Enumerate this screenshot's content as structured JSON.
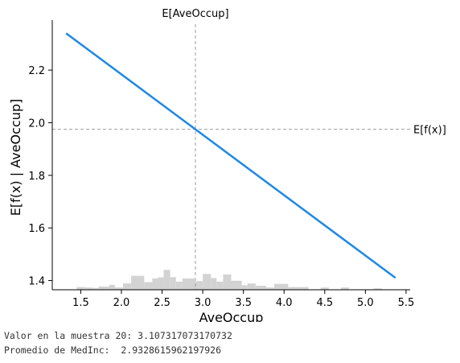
{
  "chart_data": {
    "type": "line",
    "xlabel": "AveOccup",
    "ylabel": "E[f(x) | AveOccup]",
    "xlim": [
      1.15,
      5.55
    ],
    "ylim": [
      1.365,
      2.39
    ],
    "xticks": [
      1.5,
      2.0,
      2.5,
      3.0,
      3.5,
      4.0,
      4.5,
      5.0,
      5.5
    ],
    "xtick_labels": [
      "1.5",
      "2.0",
      "2.5",
      "3.0",
      "3.5",
      "4.0",
      "4.5",
      "5.0",
      "5.5"
    ],
    "yticks": [
      1.4,
      1.6,
      1.8,
      2.0,
      2.2
    ],
    "ytick_labels": [
      "1.4",
      "1.6",
      "1.8",
      "2.0",
      "2.2"
    ],
    "series": [
      {
        "x": [
          1.32,
          5.37
        ],
        "y": [
          2.34,
          1.41
        ],
        "color": "#1e88e5"
      }
    ],
    "expected_x": {
      "label": "E[AveOccup]",
      "value": 2.91
    },
    "expected_y": {
      "label": "E[f(x)]",
      "value": 1.975
    },
    "histogram": {
      "color": "#d3d3d3",
      "bins": [
        {
          "x0": 1.45,
          "x1": 1.55,
          "h": 0.12
        },
        {
          "x0": 1.55,
          "x1": 1.65,
          "h": 0.1
        },
        {
          "x0": 1.65,
          "x1": 1.72,
          "h": 0.08
        },
        {
          "x0": 1.72,
          "x1": 1.85,
          "h": 0.14
        },
        {
          "x0": 1.85,
          "x1": 1.92,
          "h": 0.22
        },
        {
          "x0": 1.92,
          "x1": 2.02,
          "h": 0.1
        },
        {
          "x0": 2.02,
          "x1": 2.12,
          "h": 0.28
        },
        {
          "x0": 2.12,
          "x1": 2.28,
          "h": 0.62
        },
        {
          "x0": 2.28,
          "x1": 2.38,
          "h": 0.34
        },
        {
          "x0": 2.38,
          "x1": 2.45,
          "h": 0.5
        },
        {
          "x0": 2.45,
          "x1": 2.52,
          "h": 0.55
        },
        {
          "x0": 2.52,
          "x1": 2.6,
          "h": 0.88
        },
        {
          "x0": 2.6,
          "x1": 2.67,
          "h": 0.56
        },
        {
          "x0": 2.67,
          "x1": 2.75,
          "h": 0.36
        },
        {
          "x0": 2.75,
          "x1": 2.9,
          "h": 0.5
        },
        {
          "x0": 2.9,
          "x1": 3.0,
          "h": 0.38
        },
        {
          "x0": 3.0,
          "x1": 3.1,
          "h": 0.7
        },
        {
          "x0": 3.1,
          "x1": 3.17,
          "h": 0.52
        },
        {
          "x0": 3.17,
          "x1": 3.25,
          "h": 0.36
        },
        {
          "x0": 3.25,
          "x1": 3.35,
          "h": 0.68
        },
        {
          "x0": 3.35,
          "x1": 3.48,
          "h": 0.4
        },
        {
          "x0": 3.48,
          "x1": 3.55,
          "h": 0.2
        },
        {
          "x0": 3.55,
          "x1": 3.65,
          "h": 0.28
        },
        {
          "x0": 3.65,
          "x1": 3.78,
          "h": 0.18
        },
        {
          "x0": 3.78,
          "x1": 3.88,
          "h": 0.1
        },
        {
          "x0": 3.88,
          "x1": 4.05,
          "h": 0.26
        },
        {
          "x0": 4.05,
          "x1": 4.3,
          "h": 0.12
        },
        {
          "x0": 4.45,
          "x1": 4.55,
          "h": 0.1
        },
        {
          "x0": 4.7,
          "x1": 4.8,
          "h": 0.1
        },
        {
          "x0": 5.1,
          "x1": 5.2,
          "h": 0.06
        }
      ]
    }
  },
  "console": {
    "line1": "Valor en la muestra 20: 3.107317073170732",
    "line2": "Promedio de MedInc:  2.9328615962197926"
  }
}
